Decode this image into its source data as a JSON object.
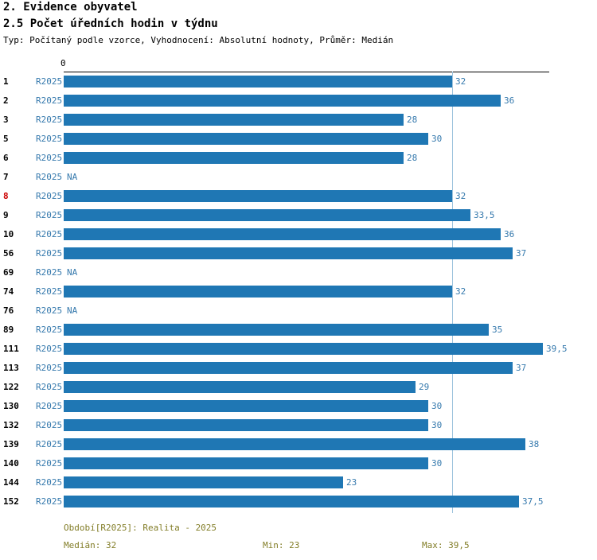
{
  "header": {
    "title1": "2. Evidence obyvatel",
    "title2": "2.5 Počet úředních hodin v týdnu",
    "subtitle": "Typ: Počítaný podle vzorce, Vyhodnocení: Absolutní hodnoty, Průměr: Medián"
  },
  "chart_data": {
    "type": "bar",
    "orientation": "horizontal",
    "title": "2.5 Počet úředních hodin v týdnu",
    "series_label": "R2025",
    "axis_zero_label": "0",
    "categories": [
      "1",
      "2",
      "3",
      "5",
      "6",
      "7",
      "8",
      "9",
      "10",
      "56",
      "69",
      "74",
      "76",
      "89",
      "111",
      "113",
      "122",
      "130",
      "132",
      "139",
      "140",
      "144",
      "152"
    ],
    "values": [
      32,
      36,
      28,
      30,
      28,
      null,
      32,
      33.5,
      36,
      37,
      null,
      32,
      null,
      35,
      39.5,
      37,
      29,
      30,
      30,
      38,
      30,
      23,
      37.5
    ],
    "value_labels": [
      "32",
      "36",
      "28",
      "30",
      "28",
      "NA",
      "32",
      "33,5",
      "36",
      "37",
      "NA",
      "32",
      "NA",
      "35",
      "39,5",
      "37",
      "29",
      "30",
      "30",
      "38",
      "30",
      "23",
      "37,5"
    ],
    "highlighted_category": "8",
    "xlim": [
      0,
      40
    ],
    "median_line": 32,
    "legend_position": "none",
    "grid": false
  },
  "colors": {
    "bar": "#1f77b4",
    "blue_text": "#3579ad",
    "footer": "#827d27",
    "highlight_red": "#cc0000",
    "median_line": "#9dc3dd"
  },
  "footer": {
    "period": "Období[R2025]: Realita - 2025",
    "median": "Medián: 32",
    "min": "Min: 23",
    "max": "Max: 39,5"
  }
}
